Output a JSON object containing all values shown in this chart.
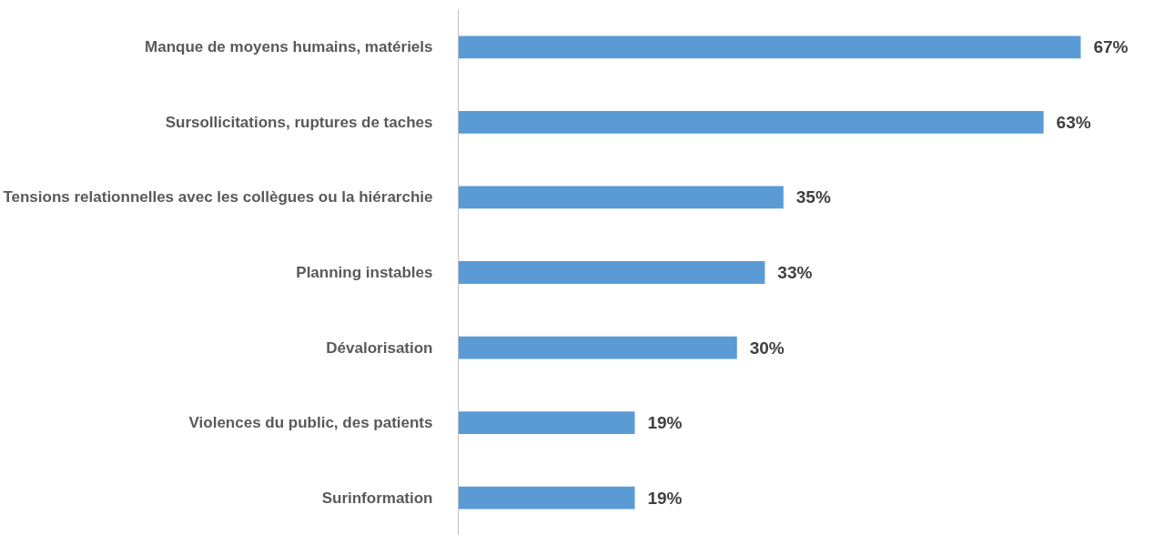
{
  "chart_data": {
    "type": "bar",
    "orientation": "horizontal",
    "categories": [
      "Manque de moyens humains, matériels",
      "Sursollicitations, ruptures de taches",
      "Tensions relationnelles avec les collègues ou la hiérarchie",
      "Planning instables",
      "Dévalorisation",
      "Violences du public, des patients",
      "Surinformation"
    ],
    "values": [
      67,
      63,
      35,
      33,
      30,
      19,
      19
    ],
    "value_labels": [
      "67%",
      "63%",
      "35%",
      "33%",
      "30%",
      "19%",
      "19%"
    ],
    "color": "#5b9bd5",
    "tick_labels": "y"
  }
}
